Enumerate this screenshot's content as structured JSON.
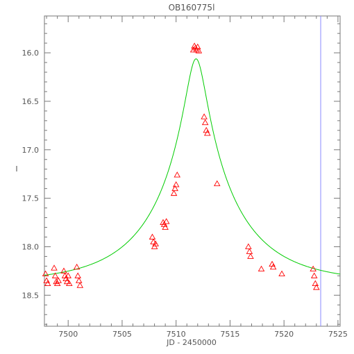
{
  "chart_data": {
    "type": "scatter",
    "title": "OB160775l",
    "xlabel": "JD - 2450000",
    "ylabel": "I",
    "xlim": [
      7497.8,
      7525.2
    ],
    "ylim": [
      18.82,
      15.62
    ],
    "y_inverted": true,
    "grid": false,
    "x_ticks": [
      7500,
      7505,
      7510,
      7515,
      7520,
      7525
    ],
    "y_ticks": [
      16.0,
      16.5,
      17.0,
      17.5,
      18.0,
      18.5
    ],
    "x_tick_labels": [
      "7500",
      "7505",
      "7510",
      "7515",
      "7520",
      "7525"
    ],
    "y_tick_labels": [
      "16.0",
      "16.5",
      "17.0",
      "17.5",
      "18.0",
      "18.5"
    ],
    "vertical_marker_x": 7523.4,
    "colors": {
      "data": "#ff0000",
      "model": "#00cc00",
      "marker": "#8888ff",
      "axes": "#777777"
    },
    "model": {
      "t0": 7511.85,
      "u0": 0.12,
      "tE": 7.5,
      "base_mag": 18.37
    },
    "series": [
      {
        "marker": "triangle",
        "x": [
          7497.9,
          7498.0,
          7498.1,
          7498.7,
          7498.8,
          7498.9,
          7499.0,
          7499.1,
          7499.6,
          7499.7,
          7499.8,
          7499.9,
          7500.0,
          7500.1,
          7500.8,
          7500.9,
          7501.0,
          7501.1,
          7507.8,
          7507.9,
          7508.0,
          7508.1,
          7508.8,
          7508.9,
          7509.0,
          7509.1,
          7509.8,
          7509.9,
          7510.0,
          7510.1,
          7511.6,
          7511.7,
          7511.8,
          7511.9,
          7512.0,
          7512.1,
          7512.6,
          7512.7,
          7512.8,
          7512.9,
          7513.8,
          7516.7,
          7516.8,
          7516.9,
          7517.9,
          7518.9,
          7519.0,
          7519.8,
          7522.7,
          7522.8,
          7522.9,
          7523.0
        ],
        "y": [
          18.28,
          18.35,
          18.38,
          18.22,
          18.3,
          18.36,
          18.38,
          18.35,
          18.25,
          18.3,
          18.33,
          18.36,
          18.3,
          18.38,
          18.21,
          18.3,
          18.35,
          18.4,
          17.9,
          17.95,
          18.0,
          17.97,
          17.75,
          17.77,
          17.8,
          17.74,
          17.45,
          17.4,
          17.36,
          17.26,
          15.97,
          15.93,
          15.95,
          15.97,
          15.94,
          15.98,
          16.66,
          16.72,
          16.8,
          16.83,
          17.35,
          18.0,
          18.05,
          18.1,
          18.23,
          18.18,
          18.21,
          18.28,
          18.23,
          18.3,
          18.38,
          18.42
        ]
      }
    ]
  }
}
